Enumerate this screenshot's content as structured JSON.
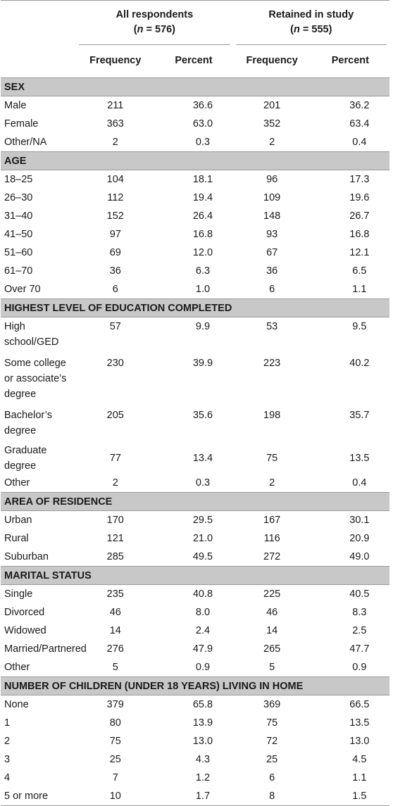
{
  "table": {
    "groups": [
      {
        "title": "All respondents",
        "n_prefix": "(",
        "n_var": "n",
        "n_rest": " = 576)"
      },
      {
        "title": "Retained in study",
        "n_prefix": "(",
        "n_var": "n",
        "n_rest": " = 555)"
      }
    ],
    "col_headers": [
      "Frequency",
      "Percent",
      "Frequency",
      "Percent"
    ],
    "sections": [
      {
        "title": "SEX",
        "rows": [
          {
            "label": "Male",
            "values": [
              "211",
              "36.6",
              "201",
              "36.2"
            ]
          },
          {
            "label": "Female",
            "values": [
              "363",
              "63.0",
              "352",
              "63.4"
            ]
          },
          {
            "label": "Other/NA",
            "values": [
              "2",
              "0.3",
              "2",
              "0.4"
            ]
          }
        ]
      },
      {
        "title": "AGE",
        "rows": [
          {
            "label": "18–25",
            "values": [
              "104",
              "18.1",
              "96",
              "17.3"
            ]
          },
          {
            "label": "26–30",
            "values": [
              "112",
              "19.4",
              "109",
              "19.6"
            ]
          },
          {
            "label": "31–40",
            "values": [
              "152",
              "26.4",
              "148",
              "26.7"
            ]
          },
          {
            "label": "41–50",
            "values": [
              "97",
              "16.8",
              "93",
              "16.8"
            ]
          },
          {
            "label": "51–60",
            "values": [
              "69",
              "12.0",
              "67",
              "12.1"
            ]
          },
          {
            "label": "61–70",
            "values": [
              "36",
              "6.3",
              "36",
              "6.5"
            ]
          },
          {
            "label": "Over 70",
            "values": [
              "6",
              "1.0",
              "6",
              "1.1"
            ]
          }
        ]
      },
      {
        "title": "HIGHEST LEVEL OF EDUCATION COMPLETED",
        "rows": [
          {
            "label": "High school/GED",
            "values": [
              "57",
              "9.9",
              "53",
              "9.5"
            ],
            "lines": 2
          },
          {
            "label": "Some college or associate’s degree",
            "values": [
              "230",
              "39.9",
              "223",
              "40.2"
            ],
            "lines": 3
          },
          {
            "label": "Bachelor’s degree",
            "values": [
              "205",
              "35.6",
              "198",
              "35.7"
            ],
            "lines": 2
          },
          {
            "label": "Graduate degree",
            "values": [
              "77",
              "13.4",
              "75",
              "13.5"
            ]
          },
          {
            "label": "Other",
            "values": [
              "2",
              "0.3",
              "2",
              "0.4"
            ]
          }
        ]
      },
      {
        "title": "AREA OF RESIDENCE",
        "rows": [
          {
            "label": "Urban",
            "values": [
              "170",
              "29.5",
              "167",
              "30.1"
            ]
          },
          {
            "label": "Rural",
            "values": [
              "121",
              "21.0",
              "116",
              "20.9"
            ]
          },
          {
            "label": "Suburban",
            "values": [
              "285",
              "49.5",
              "272",
              "49.0"
            ]
          }
        ]
      },
      {
        "title": "MARITAL STATUS",
        "rows": [
          {
            "label": "Single",
            "values": [
              "235",
              "40.8",
              "225",
              "40.5"
            ]
          },
          {
            "label": "Divorced",
            "values": [
              "46",
              "8.0",
              "46",
              "8.3"
            ]
          },
          {
            "label": "Widowed",
            "values": [
              "14",
              "2.4",
              "14",
              "2.5"
            ]
          },
          {
            "label": "Married/Partnered",
            "values": [
              "276",
              "47.9",
              "265",
              "47.7"
            ]
          },
          {
            "label": "Other",
            "values": [
              "5",
              "0.9",
              "5",
              "0.9"
            ]
          }
        ]
      },
      {
        "title": "NUMBER OF CHILDREN (UNDER 18 YEARS) LIVING IN HOME",
        "rows": [
          {
            "label": "None",
            "values": [
              "379",
              "65.8",
              "369",
              "66.5"
            ]
          },
          {
            "label": "1",
            "values": [
              "80",
              "13.9",
              "75",
              "13.5"
            ]
          },
          {
            "label": "2",
            "values": [
              "75",
              "13.0",
              "72",
              "13.0"
            ]
          },
          {
            "label": "3",
            "values": [
              "25",
              "4.3",
              "25",
              "4.5"
            ]
          },
          {
            "label": "4",
            "values": [
              "7",
              "1.2",
              "6",
              "1.1"
            ]
          },
          {
            "label": "5 or more",
            "values": [
              "10",
              "1.7",
              "8",
              "1.5"
            ]
          }
        ]
      }
    ]
  }
}
